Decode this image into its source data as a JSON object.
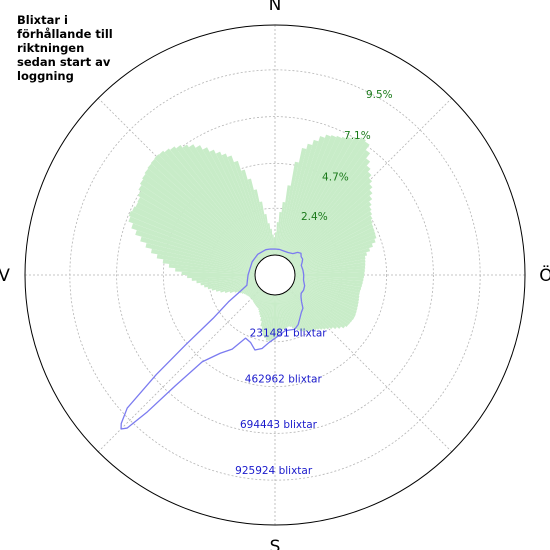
{
  "chart_data": {
    "type": "polar",
    "title_lines": [
      "Blixtar i",
      "förhållande till",
      "riktningen",
      "sedan start av",
      "loggning"
    ],
    "directions": {
      "north": "N",
      "east": "Ö",
      "south": "S",
      "west": "V"
    },
    "grid": true,
    "radial_axis_percent": {
      "ticks": [
        2.4,
        4.7,
        7.1,
        9.5
      ],
      "tick_labels": [
        "2.4%",
        "4.7%",
        "7.1%",
        "9.5%"
      ],
      "max": 11.8,
      "label_color": "#1a7a1a"
    },
    "radial_axis_count": {
      "ticks": [
        231481,
        462962,
        694443,
        925924
      ],
      "tick_labels": [
        "231481 blixtar",
        "462962 blixtar",
        "694443 blixtar",
        "925924 blixtar"
      ],
      "max": 1157405,
      "label_color": "#1a1acc"
    },
    "series": [
      {
        "type": "bar",
        "unit": "percent",
        "color": "#c8ecc8",
        "bin_width_deg": 2,
        "profile": [
          [
            0,
            0.9
          ],
          [
            8,
            3.0
          ],
          [
            12,
            5.5
          ],
          [
            20,
            6.6
          ],
          [
            28,
            6.9
          ],
          [
            34,
            7.4
          ],
          [
            40,
            6.4
          ],
          [
            46,
            5.8
          ],
          [
            54,
            5.0
          ],
          [
            62,
            4.6
          ],
          [
            70,
            4.5
          ],
          [
            78,
            3.7
          ],
          [
            86,
            3.6
          ],
          [
            94,
            3.5
          ],
          [
            102,
            3.4
          ],
          [
            110,
            3.5
          ],
          [
            118,
            3.6
          ],
          [
            126,
            3.5
          ],
          [
            134,
            2.9
          ],
          [
            142,
            2.5
          ],
          [
            150,
            2.3
          ],
          [
            156,
            2.1
          ],
          [
            164,
            1.7
          ],
          [
            172,
            1.8
          ],
          [
            180,
            2.2
          ],
          [
            186,
            2.4
          ],
          [
            192,
            2.1
          ],
          [
            198,
            1.3
          ],
          [
            206,
            0.9
          ],
          [
            214,
            0.8
          ],
          [
            222,
            0.7
          ],
          [
            230,
            0.7
          ],
          [
            238,
            0.8
          ],
          [
            246,
            1.1
          ],
          [
            252,
            1.8
          ],
          [
            258,
            2.4
          ],
          [
            264,
            2.9
          ],
          [
            270,
            3.6
          ],
          [
            276,
            4.6
          ],
          [
            282,
            5.6
          ],
          [
            288,
            6.6
          ],
          [
            292,
            7.1
          ],
          [
            298,
            6.9
          ],
          [
            304,
            7.3
          ],
          [
            310,
            7.5
          ],
          [
            316,
            7.6
          ],
          [
            322,
            7.3
          ],
          [
            328,
            6.8
          ],
          [
            334,
            6.0
          ],
          [
            340,
            5.4
          ],
          [
            346,
            3.8
          ],
          [
            352,
            1.8
          ],
          [
            358,
            0.9
          ]
        ]
      },
      {
        "type": "line",
        "unit": "count",
        "color": "#7b7bf0",
        "points": [
          [
            0,
            30000
          ],
          [
            10,
            30000
          ],
          [
            20,
            28000
          ],
          [
            30,
            30000
          ],
          [
            40,
            40000
          ],
          [
            45,
            60000
          ],
          [
            50,
            70000
          ],
          [
            55,
            60000
          ],
          [
            60,
            60000
          ],
          [
            65,
            50000
          ],
          [
            70,
            40000
          ],
          [
            80,
            42000
          ],
          [
            90,
            44000
          ],
          [
            100,
            45000
          ],
          [
            110,
            58000
          ],
          [
            118,
            62000
          ],
          [
            125,
            60000
          ],
          [
            130,
            70000
          ],
          [
            135,
            88000
          ],
          [
            140,
            118000
          ],
          [
            145,
            130000
          ],
          [
            150,
            150000
          ],
          [
            155,
            175000
          ],
          [
            160,
            190000
          ],
          [
            165,
            186000
          ],
          [
            170,
            185000
          ],
          [
            175,
            200000
          ],
          [
            180,
            218000
          ],
          [
            185,
            240000
          ],
          [
            190,
            275000
          ],
          [
            195,
            290000
          ],
          [
            200,
            260000
          ],
          [
            205,
            250000
          ],
          [
            210,
            330000
          ],
          [
            215,
            380000
          ],
          [
            220,
            470000
          ],
          [
            222,
            650000
          ],
          [
            223,
            840000
          ],
          [
            224,
            970000
          ],
          [
            225,
            995000
          ],
          [
            226,
            975000
          ],
          [
            228,
            900000
          ],
          [
            230,
            680000
          ],
          [
            232,
            470000
          ],
          [
            235,
            280000
          ],
          [
            240,
            170000
          ],
          [
            245,
            90000
          ],
          [
            250,
            50000
          ],
          [
            260,
            40000
          ],
          [
            270,
            35000
          ],
          [
            280,
            30000
          ],
          [
            300,
            32000
          ],
          [
            320,
            35000
          ],
          [
            340,
            35000
          ],
          [
            350,
            32000
          ],
          [
            360,
            30000
          ]
        ]
      }
    ]
  }
}
